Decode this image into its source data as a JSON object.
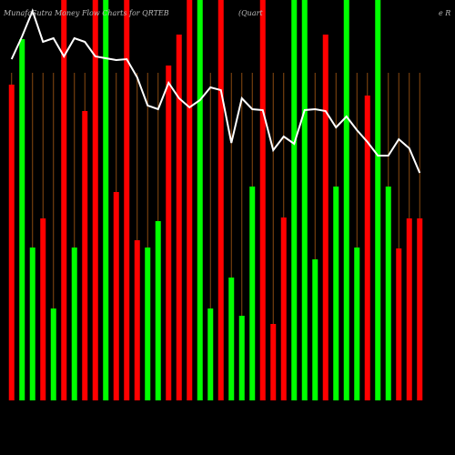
{
  "chart_data": {
    "type": "bar",
    "title": "MunafaSutra  Money Flow  Charts for QRTEB",
    "subtitle": "(Quart",
    "title_tail": "e  R",
    "categories": [
      null,
      null,
      null,
      null,
      null,
      null,
      null,
      null,
      null,
      null,
      null,
      null,
      null,
      null,
      null,
      null,
      null,
      null,
      null,
      null,
      null,
      null,
      null,
      null,
      null,
      null,
      null,
      null,
      null,
      null,
      null,
      null,
      null,
      null,
      null,
      null,
      null,
      null,
      null,
      null
    ],
    "ylim": [
      0,
      440
    ],
    "series": [
      {
        "type": "bar",
        "values": [
          347,
          397,
          168,
          200,
          101,
          440,
          168,
          318,
          440,
          440,
          229,
          440,
          176,
          168,
          197,
          368,
          402,
          440,
          440,
          101,
          440,
          135,
          93,
          235,
          440,
          84,
          201,
          440,
          440,
          155,
          402,
          235,
          440,
          168,
          335,
          440,
          235,
          167,
          200,
          200
        ],
        "colors": [
          "#ff0000",
          "#00ff00",
          "#00ff00",
          "#ff0000",
          "#00ff00",
          "#ff0000",
          "#00ff00",
          "#ff0000",
          "#ff0000",
          "#00ff00",
          "#ff0000",
          "#ff0000",
          "#ff0000",
          "#00ff00",
          "#00ff00",
          "#ff0000",
          "#ff0000",
          "#ff0000",
          "#00ff00",
          "#00ff00",
          "#ff0000",
          "#00ff00",
          "#00ff00",
          "#00ff00",
          "#ff0000",
          "#ff0000",
          "#ff0000",
          "#00ff00",
          "#00ff00",
          "#00ff00",
          "#ff0000",
          "#00ff00",
          "#00ff00",
          "#00ff00",
          "#ff0000",
          "#00ff00",
          "#00ff00",
          "#ff0000",
          "#ff0000",
          "#ff0000"
        ]
      },
      {
        "type": "line",
        "color": "#ffffff",
        "values": [
          375,
          400,
          428,
          394,
          398,
          378,
          398,
          394,
          378,
          376,
          374,
          375,
          355,
          324,
          320,
          349,
          332,
          322,
          330,
          344,
          341,
          283,
          332,
          320,
          319,
          275,
          290,
          282,
          319,
          320,
          318,
          300,
          312,
          297,
          284,
          269,
          269,
          287,
          277,
          250
        ]
      }
    ]
  }
}
